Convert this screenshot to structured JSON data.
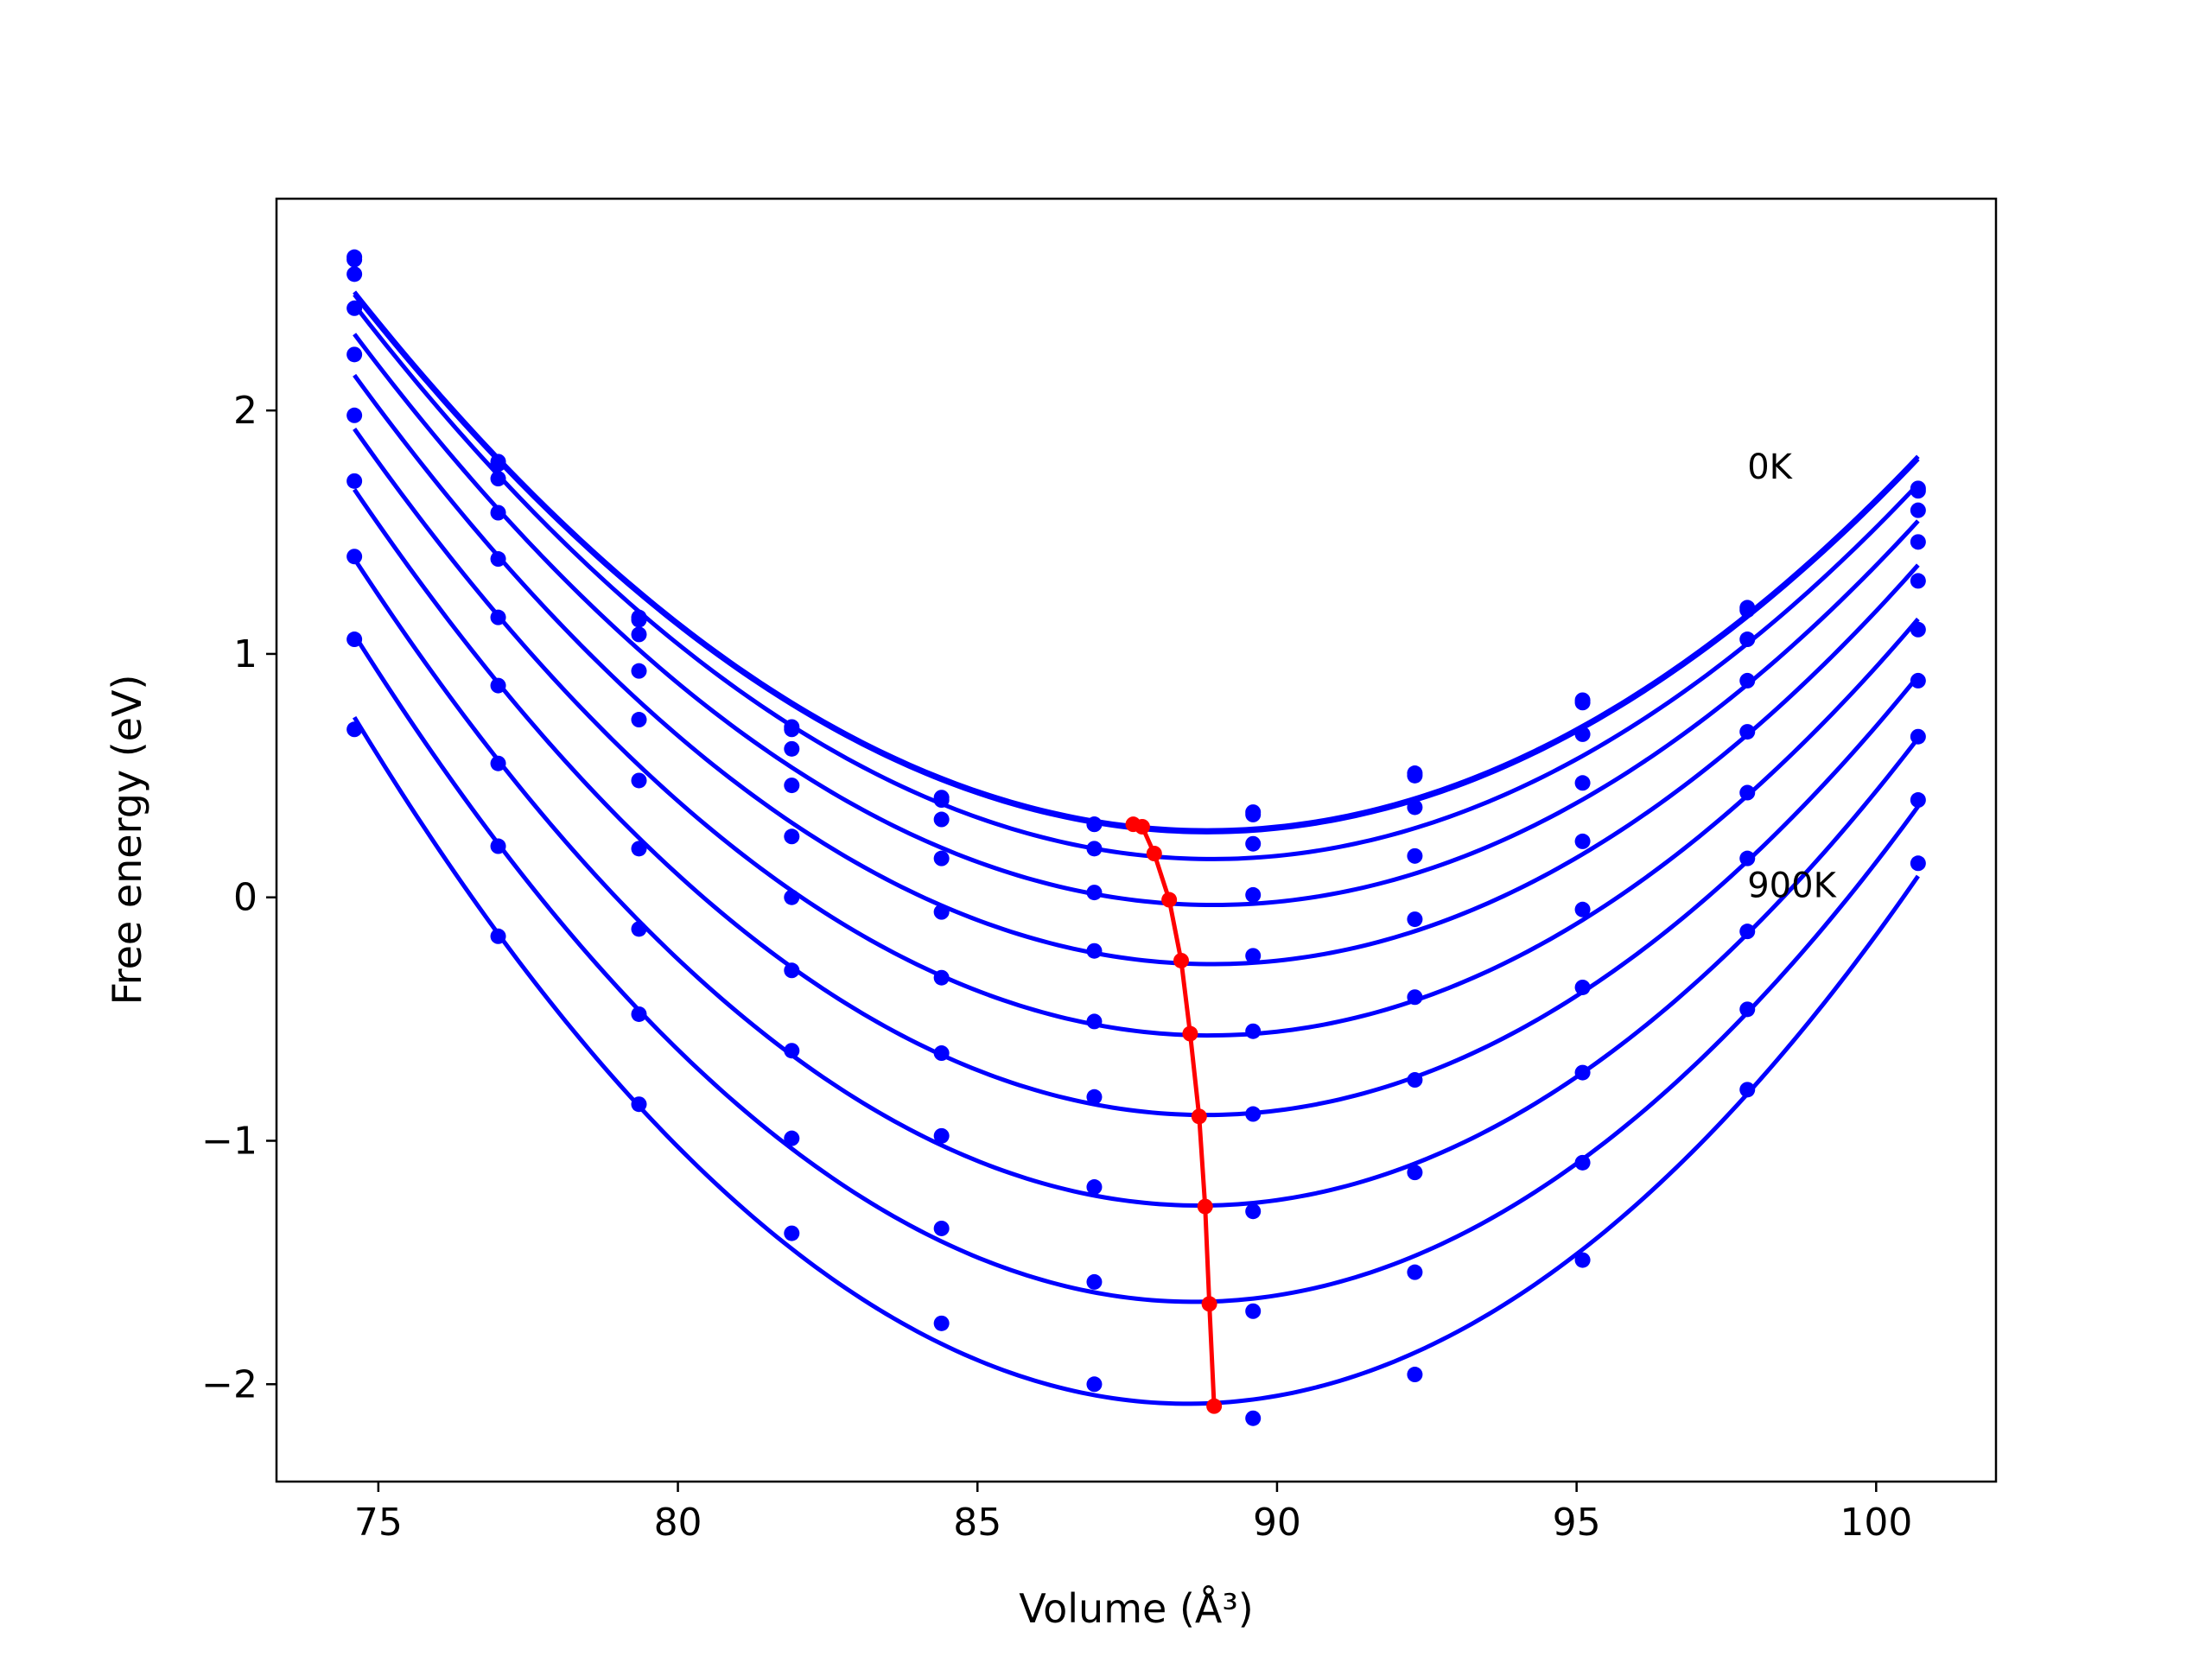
{
  "chart_data": {
    "type": "line",
    "title": "",
    "xlabel": "Volume (Å³)",
    "ylabel": "Free energy (eV)",
    "xlim": [
      73.3,
      102.0
    ],
    "ylim": [
      -2.4,
      2.87
    ],
    "xticks": [
      75,
      80,
      85,
      90,
      95,
      100
    ],
    "xtick_labels": [
      "75",
      "80",
      "85",
      "90",
      "95",
      "100"
    ],
    "yticks": [
      -2,
      -1,
      0,
      1,
      2
    ],
    "ytick_labels": [
      "−2",
      "−1",
      "0",
      "1",
      "2"
    ],
    "grid": false,
    "annotations": [
      {
        "text": "0K",
        "x": 97.85,
        "y": 1.72
      },
      {
        "text": "900K",
        "x": 97.85,
        "y": 0.0
      }
    ],
    "x": [
      74.6,
      77.0,
      79.35,
      81.9,
      84.4,
      86.95,
      89.6,
      92.3,
      95.1,
      97.85,
      100.7
    ],
    "series": [
      {
        "color": "#0000ff",
        "values": [
          2.63,
          1.79,
          1.15,
          0.7,
          0.41,
          0.3,
          0.35,
          0.51,
          0.81,
          1.19,
          1.68
        ]
      },
      {
        "color": "#0000ff",
        "values": [
          2.62,
          1.78,
          1.14,
          0.69,
          0.4,
          0.3,
          0.34,
          0.5,
          0.8,
          1.18,
          1.67
        ]
      },
      {
        "color": "#0000ff",
        "values": [
          2.56,
          1.72,
          1.08,
          0.61,
          0.32,
          0.2,
          0.22,
          0.37,
          0.67,
          1.06,
          1.59
        ]
      },
      {
        "color": "#0000ff",
        "values": [
          2.42,
          1.58,
          0.93,
          0.46,
          0.16,
          0.02,
          0.01,
          0.17,
          0.47,
          0.89,
          1.46
        ]
      },
      {
        "color": "#0000ff",
        "values": [
          2.23,
          1.39,
          0.73,
          0.25,
          -0.06,
          -0.22,
          -0.24,
          -0.09,
          0.23,
          0.68,
          1.3
        ]
      },
      {
        "color": "#0000ff",
        "values": [
          1.98,
          1.15,
          0.48,
          0.0,
          -0.33,
          -0.51,
          -0.55,
          -0.41,
          -0.05,
          0.43,
          1.1
        ]
      },
      {
        "color": "#0000ff",
        "values": [
          1.71,
          0.87,
          0.2,
          -0.3,
          -0.64,
          -0.82,
          -0.89,
          -0.75,
          -0.37,
          0.16,
          0.89
        ]
      },
      {
        "color": "#0000ff",
        "values": [
          1.4,
          0.55,
          -0.13,
          -0.63,
          -0.98,
          -1.19,
          -1.29,
          -1.13,
          -0.72,
          -0.14,
          0.66
        ]
      },
      {
        "color": "#0000ff",
        "values": [
          1.06,
          0.21,
          -0.48,
          -0.99,
          -1.36,
          -1.58,
          -1.7,
          -1.54,
          -1.09,
          -0.46,
          0.4
        ]
      },
      {
        "color": "#0000ff",
        "values": [
          0.69,
          -0.16,
          -0.85,
          -1.38,
          -1.75,
          -2.0,
          -2.14,
          -1.96,
          -1.49,
          -0.79,
          0.14
        ]
      }
    ],
    "minimum_locus": {
      "color": "#ff0000",
      "x": [
        87.6,
        87.75,
        87.95,
        88.2,
        88.4,
        88.55,
        88.7,
        88.8,
        88.87,
        88.95
      ],
      "y": [
        0.3,
        0.29,
        0.18,
        -0.01,
        -0.26,
        -0.56,
        -0.9,
        -1.27,
        -1.67,
        -2.09
      ]
    }
  }
}
